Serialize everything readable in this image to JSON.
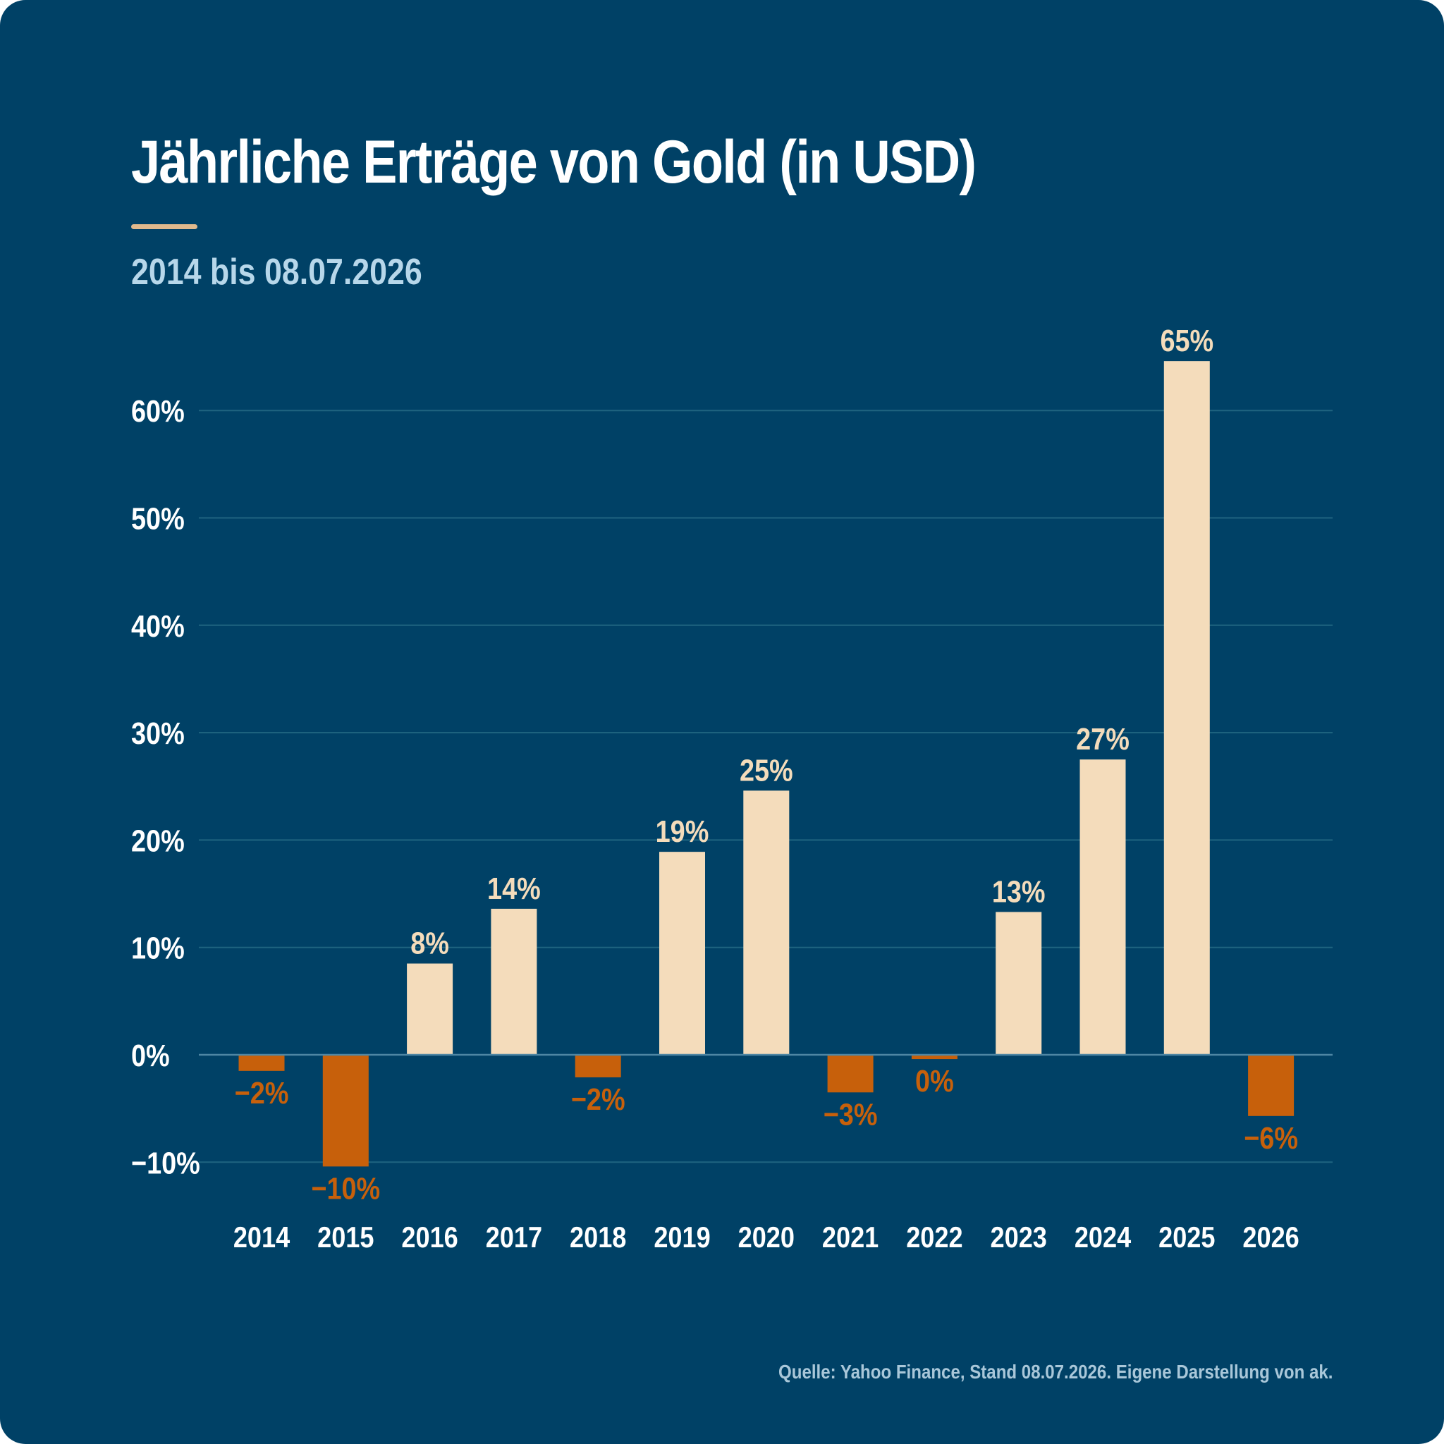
{
  "header": {
    "title": "Jährliche Erträge von Gold (in USD)",
    "subtitle": "2014 bis 08.07.2026"
  },
  "footer": {
    "source": "Quelle: Yahoo Finance, Stand 08.07.2026. Eigene Darstellung von ak."
  },
  "colors": {
    "background": "#004166",
    "positive": "#f4dcbb",
    "negative": "#c7600b",
    "grid": "#1f6480",
    "accent": "#e0b98d"
  },
  "chart_data": {
    "type": "bar",
    "categories": [
      "2014",
      "2015",
      "2016",
      "2017",
      "2018",
      "2019",
      "2020",
      "2021",
      "2022",
      "2023",
      "2024",
      "2025",
      "2026"
    ],
    "values": [
      -1.5,
      -10.4,
      8.5,
      13.6,
      -2.1,
      18.9,
      24.6,
      -3.5,
      -0.4,
      13.3,
      27.5,
      64.6,
      -5.7
    ],
    "data_labels": [
      "−2%",
      "−10%",
      "8%",
      "14%",
      "−2%",
      "19%",
      "25%",
      "−3%",
      "0%",
      "13%",
      "27%",
      "65%",
      "−6%"
    ],
    "y_ticks": [
      -10,
      0,
      10,
      20,
      30,
      40,
      50,
      60
    ],
    "y_tick_labels": [
      "−10%",
      "0%",
      "10%",
      "20%",
      "30%",
      "40%",
      "50%",
      "60%"
    ],
    "ylim": [
      -15,
      70
    ],
    "xlabel": "",
    "ylabel": "",
    "grid": true,
    "legend": "none"
  }
}
